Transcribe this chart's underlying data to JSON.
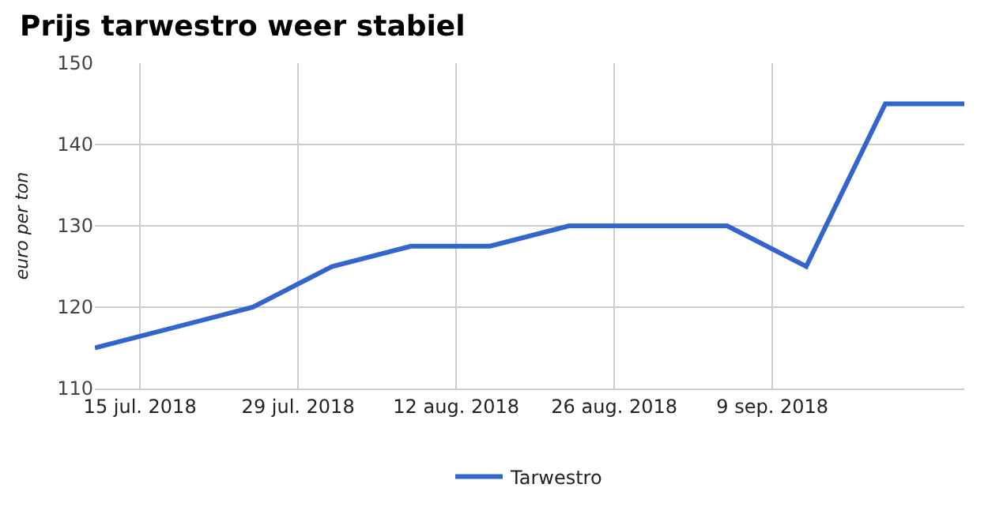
{
  "chart_data": {
    "type": "line",
    "title": "Prijs tarwestro weer stabiel",
    "ylabel": "euro per ton",
    "x": [
      "2018-07-11",
      "2018-07-25",
      "2018-08-01",
      "2018-08-08",
      "2018-08-15",
      "2018-08-22",
      "2018-09-05",
      "2018-09-12",
      "2018-09-19",
      "2018-09-26"
    ],
    "series": [
      {
        "name": "Tarwestro",
        "color": "#3366cc",
        "values": [
          115,
          120,
          125,
          127.5,
          127.5,
          130,
          130,
          125,
          145,
          145
        ]
      }
    ],
    "xlim": [
      "2018-07-11",
      "2018-09-26"
    ],
    "xticks": [
      {
        "value": "2018-07-15",
        "label": "15 jul. 2018"
      },
      {
        "value": "2018-07-29",
        "label": "29 jul. 2018"
      },
      {
        "value": "2018-08-12",
        "label": "12 aug. 2018"
      },
      {
        "value": "2018-08-26",
        "label": "26 aug. 2018"
      },
      {
        "value": "2018-09-09",
        "label": "9 sep. 2018"
      }
    ],
    "ylim": [
      110,
      150
    ],
    "yticks": [
      110,
      120,
      130,
      140,
      150
    ],
    "grid": true,
    "legend": "bottom",
    "marker": "none",
    "line_style": "solid"
  }
}
